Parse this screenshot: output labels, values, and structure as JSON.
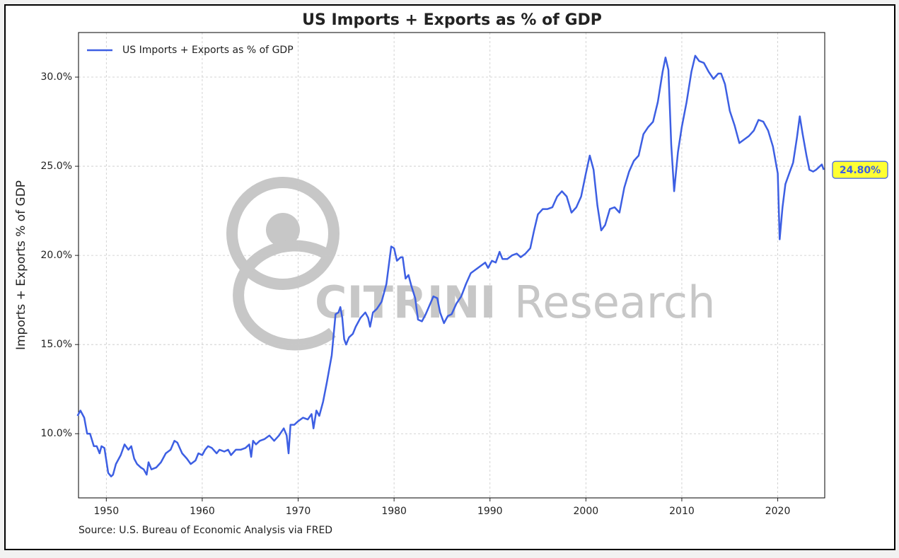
{
  "chart_data": {
    "type": "line",
    "title": "US Imports + Exports as % of GDP",
    "ylabel": "Imports + Exports % of GDP",
    "source": "Source: U.S. Bureau of Economic Analysis via FRED",
    "watermark": [
      "CITRINI",
      "Research"
    ],
    "legend": "upper left",
    "grid": true,
    "xlim": [
      1947.1,
      2024.9
    ],
    "xticks": [
      1950,
      1960,
      1970,
      1980,
      1990,
      2000,
      2010,
      2020
    ],
    "ylim": [
      6.4,
      32.5
    ],
    "yticks": [
      {
        "value": 10,
        "label": "10.0%"
      },
      {
        "value": 15,
        "label": "15.0%"
      },
      {
        "value": 20,
        "label": "20.0%"
      },
      {
        "value": 25,
        "label": "25.0%"
      },
      {
        "value": 30,
        "label": "30.0%"
      }
    ],
    "end_label": {
      "value": 24.8,
      "label": "24.80%"
    },
    "series": [
      {
        "name": "US Imports + Exports as % of GDP",
        "color": "#3d5fe3",
        "x": [
          1947.0,
          1947.3,
          1947.7,
          1948.0,
          1948.3,
          1948.7,
          1949.0,
          1949.3,
          1949.5,
          1949.8,
          1950.0,
          1950.2,
          1950.5,
          1950.7,
          1951.0,
          1951.5,
          1951.9,
          1952.3,
          1952.6,
          1952.9,
          1953.2,
          1953.6,
          1953.9,
          1954.2,
          1954.4,
          1954.7,
          1955.2,
          1955.7,
          1956.2,
          1956.7,
          1957.1,
          1957.4,
          1957.9,
          1958.4,
          1958.8,
          1959.3,
          1959.6,
          1960.0,
          1960.3,
          1960.6,
          1961.0,
          1961.5,
          1961.8,
          1962.3,
          1962.7,
          1963.0,
          1963.5,
          1964.0,
          1964.5,
          1964.9,
          1965.1,
          1965.3,
          1965.6,
          1966.0,
          1966.5,
          1967.0,
          1967.5,
          1968.0,
          1968.5,
          1968.8,
          1969.0,
          1969.2,
          1969.6,
          1970.0,
          1970.5,
          1971.0,
          1971.4,
          1971.6,
          1971.9,
          1972.2,
          1972.6,
          1973.0,
          1973.5,
          1973.9,
          1974.2,
          1974.4,
          1974.6,
          1974.8,
          1975.0,
          1975.3,
          1975.7,
          1976.0,
          1976.5,
          1977.0,
          1977.3,
          1977.5,
          1977.8,
          1978.2,
          1978.7,
          1979.2,
          1979.7,
          1980.0,
          1980.3,
          1980.7,
          1980.9,
          1981.2,
          1981.5,
          1981.8,
          1982.2,
          1982.5,
          1982.9,
          1983.3,
          1983.7,
          1984.1,
          1984.5,
          1984.8,
          1985.2,
          1985.6,
          1986.0,
          1986.5,
          1987.0,
          1987.5,
          1988.0,
          1988.5,
          1989.0,
          1989.5,
          1989.8,
          1990.2,
          1990.6,
          1991.0,
          1991.3,
          1991.8,
          1992.3,
          1992.8,
          1993.2,
          1993.7,
          1994.2,
          1994.6,
          1995.0,
          1995.5,
          1996.0,
          1996.5,
          1997.0,
          1997.5,
          1998.0,
          1998.5,
          1999.0,
          1999.5,
          2000.0,
          2000.4,
          2000.8,
          2001.2,
          2001.6,
          2002.0,
          2002.5,
          2003.0,
          2003.5,
          2004.0,
          2004.5,
          2005.0,
          2005.5,
          2006.0,
          2006.5,
          2007.0,
          2007.5,
          2008.0,
          2008.3,
          2008.6,
          2008.9,
          2009.2,
          2009.6,
          2010.0,
          2010.5,
          2011.0,
          2011.4,
          2011.8,
          2012.3,
          2012.8,
          2013.3,
          2013.8,
          2014.1,
          2014.5,
          2015.0,
          2015.5,
          2016.0,
          2016.5,
          2017.0,
          2017.5,
          2018.0,
          2018.5,
          2019.0,
          2019.5,
          2020.0,
          2020.2,
          2020.5,
          2020.8,
          2021.2,
          2021.6,
          2022.0,
          2022.3,
          2022.6,
          2023.0,
          2023.3,
          2023.7,
          2024.0,
          2024.4,
          2024.6,
          2024.8
        ],
        "values": [
          11.0,
          11.3,
          10.9,
          10.0,
          10.0,
          9.3,
          9.3,
          8.9,
          9.3,
          9.2,
          8.5,
          7.8,
          7.6,
          7.7,
          8.3,
          8.8,
          9.4,
          9.1,
          9.3,
          8.6,
          8.3,
          8.1,
          8.0,
          7.7,
          8.4,
          8.0,
          8.1,
          8.4,
          8.9,
          9.1,
          9.6,
          9.5,
          8.9,
          8.6,
          8.3,
          8.5,
          8.9,
          8.8,
          9.1,
          9.3,
          9.2,
          8.9,
          9.1,
          9.0,
          9.1,
          8.8,
          9.1,
          9.1,
          9.2,
          9.4,
          8.7,
          9.6,
          9.4,
          9.6,
          9.7,
          9.9,
          9.6,
          9.9,
          10.3,
          9.9,
          8.9,
          10.5,
          10.5,
          10.7,
          10.9,
          10.8,
          11.1,
          10.3,
          11.3,
          11.0,
          11.8,
          12.9,
          14.4,
          16.7,
          16.8,
          17.1,
          16.5,
          15.3,
          15.0,
          15.4,
          15.6,
          16.0,
          16.5,
          16.8,
          16.5,
          16.0,
          16.8,
          17.0,
          17.4,
          18.4,
          20.5,
          20.4,
          19.7,
          19.9,
          19.9,
          18.7,
          18.9,
          18.3,
          17.6,
          16.4,
          16.3,
          16.7,
          17.2,
          17.7,
          17.6,
          16.8,
          16.2,
          16.6,
          16.7,
          17.3,
          17.7,
          18.4,
          19.0,
          19.2,
          19.4,
          19.6,
          19.3,
          19.7,
          19.6,
          20.2,
          19.8,
          19.8,
          20.0,
          20.1,
          19.9,
          20.1,
          20.4,
          21.4,
          22.3,
          22.6,
          22.6,
          22.7,
          23.3,
          23.6,
          23.3,
          22.4,
          22.7,
          23.3,
          24.6,
          25.6,
          24.8,
          22.8,
          21.4,
          21.7,
          22.6,
          22.7,
          22.4,
          23.8,
          24.7,
          25.3,
          25.6,
          26.8,
          27.2,
          27.5,
          28.6,
          30.3,
          31.1,
          30.4,
          26.2,
          23.6,
          25.8,
          27.2,
          28.6,
          30.3,
          31.2,
          30.9,
          30.8,
          30.3,
          29.9,
          30.2,
          30.2,
          29.6,
          28.1,
          27.3,
          26.3,
          26.5,
          26.7,
          27.0,
          27.6,
          27.5,
          27.0,
          26.1,
          24.6,
          20.9,
          22.7,
          24.0,
          24.6,
          25.2,
          26.6,
          27.8,
          26.8,
          25.6,
          24.8,
          24.7,
          24.8,
          25.0,
          25.1,
          24.8
        ]
      }
    ]
  }
}
